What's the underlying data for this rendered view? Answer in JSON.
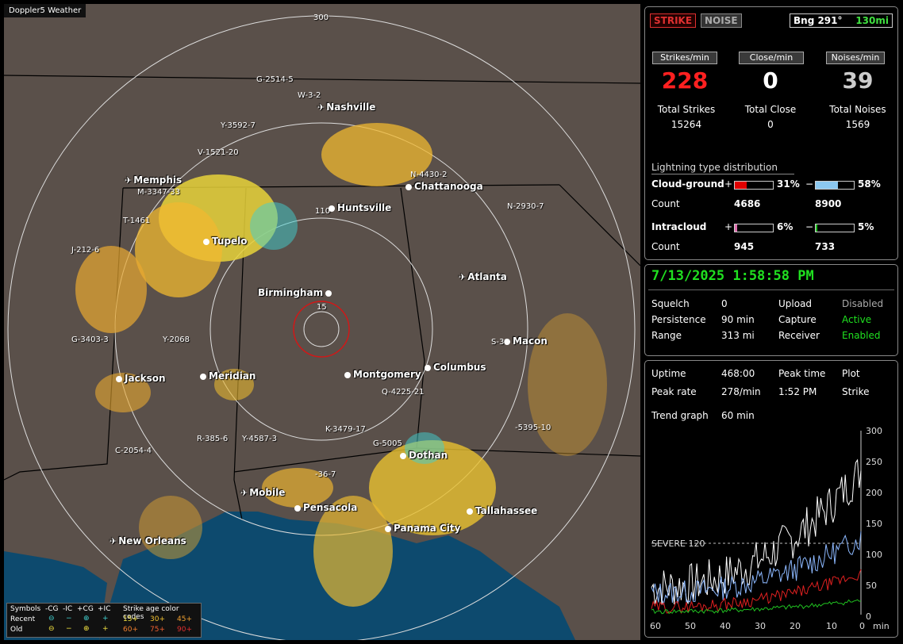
{
  "map": {
    "title": "Doppler5 Weather",
    "range_labels": [
      "300",
      "110",
      "15"
    ],
    "cities": [
      {
        "name": "Nashville",
        "icon": "plane"
      },
      {
        "name": "Memphis",
        "icon": "plane"
      },
      {
        "name": "Chattanooga",
        "icon": "dot"
      },
      {
        "name": "Huntsville",
        "icon": "dot"
      },
      {
        "name": "Tupelo",
        "icon": "dot"
      },
      {
        "name": "Atlanta",
        "icon": "plane"
      },
      {
        "name": "Birmingham",
        "icon": "dot"
      },
      {
        "name": "Macon",
        "icon": "dot"
      },
      {
        "name": "Jackson",
        "icon": "plane"
      },
      {
        "name": "Meridian",
        "icon": "dot"
      },
      {
        "name": "Montgomery",
        "icon": "dot"
      },
      {
        "name": "Columbus",
        "icon": "dot"
      },
      {
        "name": "Dothan",
        "icon": "dot"
      },
      {
        "name": "Mobile",
        "icon": "plane"
      },
      {
        "name": "Pensacola",
        "icon": "dot"
      },
      {
        "name": "Tallahassee",
        "icon": "dot"
      },
      {
        "name": "Panama City",
        "icon": "dot"
      },
      {
        "name": "New Orleans",
        "icon": "plane"
      }
    ],
    "storm_ids": [
      "G-2514-5",
      "W-3-2",
      "Y-3592-7",
      "V-1521-20",
      "M-3347-33",
      "T-1461",
      "J-212-6",
      "N-4430-2",
      "N-2930-7",
      "G-3403-3",
      "Y-2068",
      "S-3",
      "Q-4225-21",
      "K-3479-17",
      "G-5005",
      "R-385-6",
      "Y-4587-3",
      "C-2054-4",
      "-5395-10",
      "-36-7"
    ],
    "legend": {
      "symbols_label": "Symbols",
      "cols": [
        "-CG",
        "-IC",
        "+CG",
        "+IC"
      ],
      "recent": "Recent",
      "old": "Old",
      "age_title": "Strike age color codes",
      "ages_recent": [
        "15+",
        "30+",
        "45+"
      ],
      "ages_old": [
        "60+",
        "75+",
        "90+"
      ]
    }
  },
  "panel": {
    "strike_button": "STRIKE",
    "noise_button": "NOISE",
    "bearing": "Bng 291°",
    "distance": "130mi",
    "rate_headers": [
      "Strikes/min",
      "Close/min",
      "Noises/min"
    ],
    "rates": [
      "228",
      "0",
      "39"
    ],
    "total_labels": [
      "Total Strikes",
      "Total Close",
      "Total Noises"
    ],
    "totals": [
      "15264",
      "0",
      "1569"
    ],
    "dist_title": "Lightning type distribution",
    "cg_label": "Cloud-ground",
    "ic_label": "Intracloud",
    "count_label": "Count",
    "plus": "+",
    "minus": "−",
    "cg_pos_pct": "31%",
    "cg_neg_pct": "58%",
    "cg_pos_count": "4686",
    "cg_neg_count": "8900",
    "ic_pos_pct": "6%",
    "ic_neg_pct": "5%",
    "ic_pos_count": "945",
    "ic_neg_count": "733",
    "bar_fractions": {
      "cg_pos": 0.31,
      "cg_neg": 0.58,
      "ic_pos": 0.06,
      "ic_neg": 0.05
    },
    "colors": {
      "cg_pos": "#e00000",
      "cg_neg": "#8cc8f0",
      "ic_pos": "#e070b0",
      "ic_neg": "#20c020"
    }
  },
  "status": {
    "datetime": "7/13/2025 1:58:58 PM",
    "squelch_label": "Squelch",
    "squelch": "0",
    "persistence_label": "Persistence",
    "persistence": "90 min",
    "range_label": "Range",
    "range": "313 mi",
    "upload_label": "Upload",
    "upload": "Disabled",
    "capture_label": "Capture",
    "capture": "Active",
    "receiver_label": "Receiver",
    "receiver": "Enabled"
  },
  "trend": {
    "uptime_label": "Uptime",
    "uptime": "468:00",
    "peak_time_label": "Peak time",
    "peak_time": "1:52 PM",
    "plot_label": "Plot",
    "plot": "Strike",
    "peak_rate_label": "Peak rate",
    "peak_rate": "278/min",
    "trend_graph_label": "Trend graph",
    "trend_graph": "60 min",
    "severe_label": "SEVERE 120",
    "y_ticks": [
      "300",
      "250",
      "200",
      "150",
      "100",
      "50",
      "0"
    ],
    "x_ticks": [
      "60",
      "50",
      "40",
      "30",
      "20",
      "10",
      "0",
      "min"
    ]
  }
}
